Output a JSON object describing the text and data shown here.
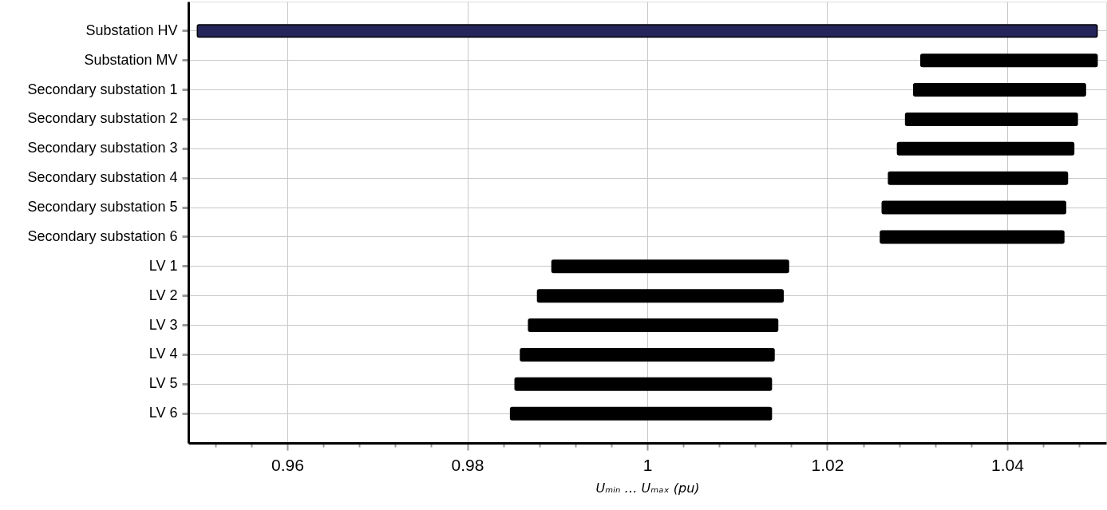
{
  "chart_data": {
    "type": "bar",
    "orientation": "horizontal",
    "categories": [
      "Substation HV",
      "Substation MV",
      "Secondary substation 1",
      "Secondary substation 2",
      "Secondary substation 3",
      "Secondary substation 4",
      "Secondary substation 5",
      "Secondary substation 6",
      "LV 1",
      "LV 2",
      "LV 3",
      "LV 4",
      "LV 5",
      "LV 6"
    ],
    "base": [
      0.95,
      1.0304,
      1.0296,
      1.0287,
      1.0278,
      1.0268,
      1.0261,
      1.0259,
      0.9894,
      0.9878,
      0.9868,
      0.9859,
      0.9853,
      0.9848
    ],
    "values": [
      0.1,
      0.0196,
      0.0191,
      0.0191,
      0.0196,
      0.0199,
      0.0204,
      0.0204,
      0.0263,
      0.0273,
      0.0277,
      0.0282,
      0.0285,
      0.029
    ],
    "colors": [
      "#25255a",
      "#000000",
      "#000000",
      "#000000",
      "#000000",
      "#000000",
      "#000000",
      "#000000",
      "#000000",
      "#000000",
      "#000000",
      "#000000",
      "#000000",
      "#000000"
    ],
    "xlim": [
      0.949,
      1.051
    ],
    "xticks": [
      {
        "value": 0.952,
        "label": null
      },
      {
        "value": 0.956,
        "label": null
      },
      0.96,
      {
        "value": 0.964,
        "label": null
      },
      {
        "value": 0.968,
        "label": null
      },
      {
        "value": 0.972,
        "label": null
      },
      {
        "value": 0.976,
        "label": null
      },
      0.98,
      {
        "value": 0.984,
        "label": null
      },
      {
        "value": 0.988,
        "label": null
      },
      {
        "value": 0.992,
        "label": null
      },
      {
        "value": 0.996,
        "label": null
      },
      1,
      {
        "value": 1.004,
        "label": null
      },
      {
        "value": 1.008,
        "label": null
      },
      {
        "value": 1.012,
        "label": null
      },
      {
        "value": 1.016,
        "label": null
      },
      1.02,
      {
        "value": 1.024,
        "label": null
      },
      {
        "value": 1.028,
        "label": null
      },
      {
        "value": 1.032,
        "label": null
      },
      {
        "value": 1.036,
        "label": null
      },
      1.04,
      {
        "value": 1.044,
        "label": null
      },
      {
        "value": 1.048,
        "label": null
      }
    ],
    "xlabel": "Uₘᵢₙ … Uₘₐₓ (pu)",
    "grid": true
  }
}
